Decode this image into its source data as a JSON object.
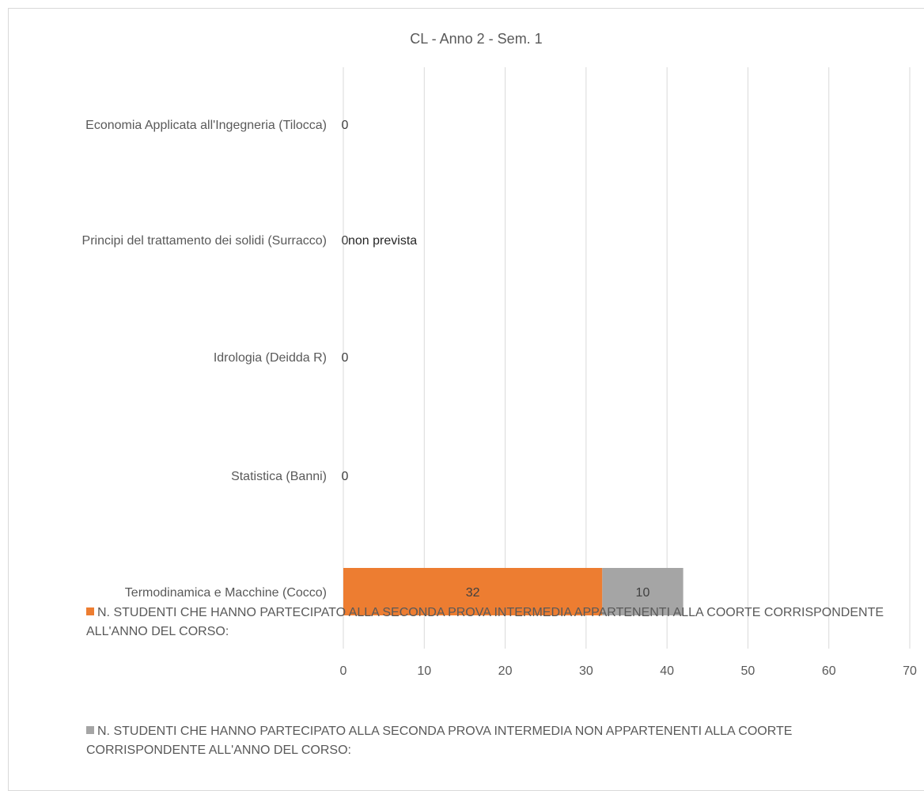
{
  "chart_data": {
    "type": "bar",
    "orientation": "horizontal",
    "stacked": true,
    "title": "CL - Anno 2 - Sem. 1",
    "categories": [
      "Termodinamica e Macchine  (Cocco)",
      "Statistica (Banni)",
      "Idrologia (Deidda R)",
      "Principi del trattamento dei solidi (Surracco)",
      "Economia Applicata all'Ingegneria (Tilocca)"
    ],
    "series": [
      {
        "name": "N. STUDENTI CHE  HANNO PARTECIPATO ALLA SECONDA PROVA INTERMEDIA APPARTENENTI ALLA COORTE CORRISPONDENTE ALL'ANNO DEL CORSO:",
        "color": "#ed7d31",
        "values": [
          32,
          0,
          0,
          0,
          0
        ],
        "labels": [
          "32",
          "0",
          "0",
          "0",
          "0"
        ]
      },
      {
        "name": "N. STUDENTI CHE  HANNO PARTECIPATO ALLA SECONDA PROVA INTERMEDIA NON APPARTENENTI ALLA COORTE CORRISPONDENTE ALL'ANNO DEL CORSO:",
        "color": "#a5a5a5",
        "values": [
          10,
          0,
          0,
          0,
          0
        ],
        "labels": [
          "10",
          "",
          "",
          "",
          ""
        ]
      }
    ],
    "annotations": [
      {
        "category": "Principi del trattamento dei solidi (Surracco)",
        "text": "non prevista"
      }
    ],
    "xlim": [
      0,
      70
    ],
    "xticks": [
      0,
      10,
      20,
      30,
      40,
      50,
      60,
      70
    ],
    "grid": true,
    "legend_position": "bottom"
  }
}
